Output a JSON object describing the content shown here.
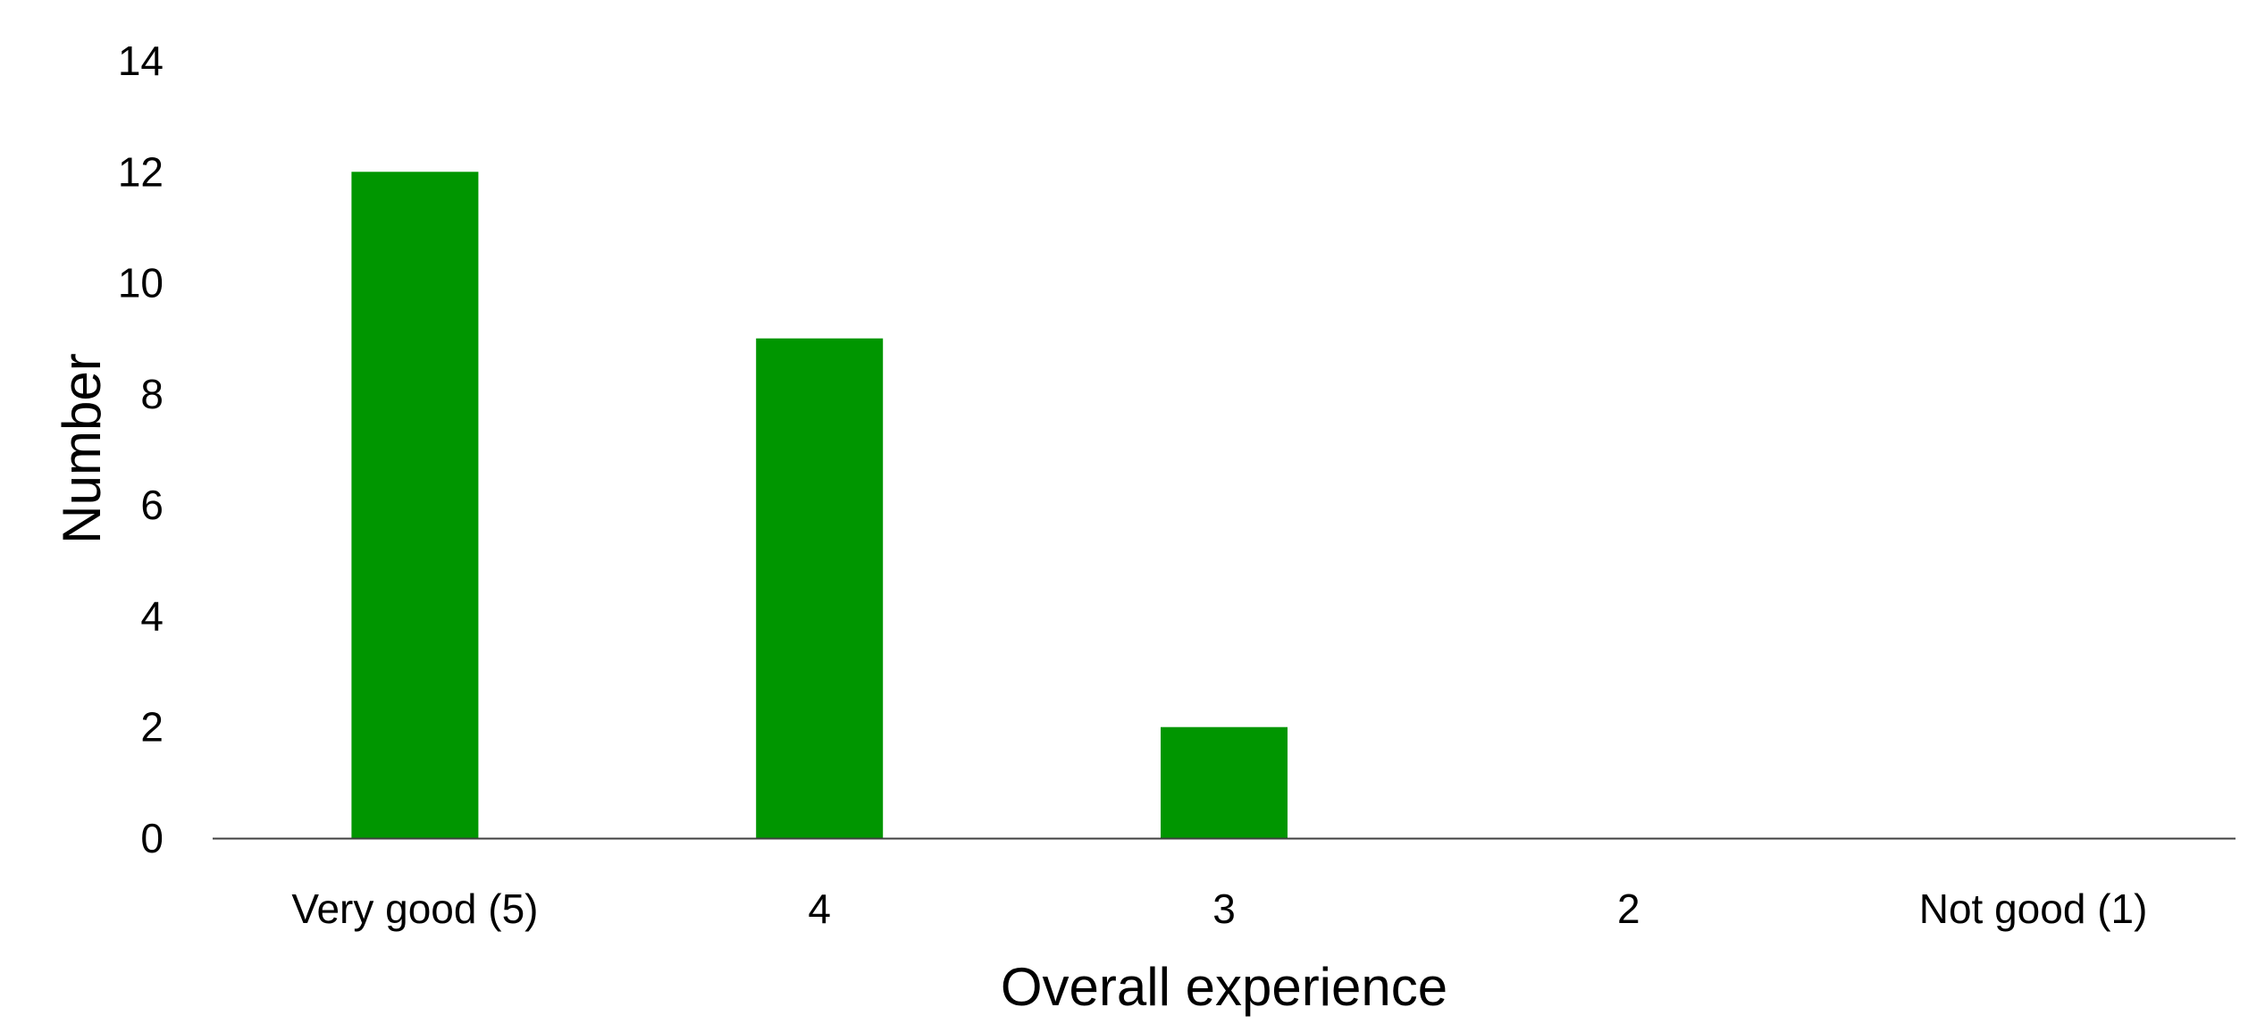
{
  "chart_data": {
    "type": "bar",
    "title": "",
    "xlabel": "Overall experience",
    "ylabel": "Number",
    "categories": [
      "Very good (5)",
      "4",
      "3",
      "2",
      "Not good (1)"
    ],
    "values": [
      12,
      9,
      2,
      0,
      0
    ],
    "ylim": [
      0,
      14
    ],
    "yticks": [
      "0",
      "2",
      "4",
      "6",
      "8",
      "10",
      "12",
      "14"
    ],
    "grid": false,
    "legend": "none",
    "bar_color": "#009600",
    "axis_color": "#404040"
  }
}
